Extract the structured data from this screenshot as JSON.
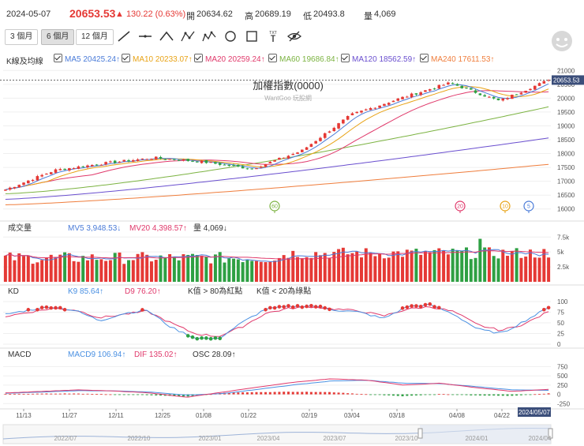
{
  "header": {
    "date": "2024-05-07",
    "price": "20653.53",
    "change": "▲ 130.22 (0.63%)",
    "open_label": "開",
    "open": "20634.62",
    "high_label": "高",
    "high": "20689.19",
    "low_label": "低",
    "low": "20493.8",
    "volume_label": "量",
    "volume": "4,069"
  },
  "periods": [
    "3 個月",
    "6 個月",
    "12 個月"
  ],
  "selected_period": 1,
  "tools": [
    "trend-line-icon",
    "horizontal-line-icon",
    "polyline-icon",
    "triangle-tool-icon",
    "wave-tool-icon",
    "circle-tool-icon",
    "rectangle-tool-icon",
    "text-tool-icon",
    "hide-drawings-icon"
  ],
  "text_tool_label": "TXT",
  "colors": {
    "up": "#e53935",
    "down": "#2ea043",
    "ma5": "#4a7bd8",
    "ma10": "#e8a317",
    "ma20": "#e0396b",
    "ma60": "#7cb342",
    "ma120": "#6a4fcf",
    "ma240": "#ef7d3c",
    "k": "#4a90e2",
    "d": "#e0396b"
  },
  "main_legend": {
    "title": "K線及均線",
    "items": [
      {
        "label": "MA5 20425.24↑",
        "color": "#4a7bd8"
      },
      {
        "label": "MA10 20233.07↑",
        "color": "#e8a317"
      },
      {
        "label": "MA20 20259.24↑",
        "color": "#e0396b"
      },
      {
        "label": "MA60 19686.84↑",
        "color": "#7cb342"
      },
      {
        "label": "MA120 18562.59↑",
        "color": "#6a4fcf"
      },
      {
        "label": "MA240 17611.53↑",
        "color": "#ef7d3c"
      }
    ]
  },
  "chart_title": "加權指數(0000)",
  "watermark": "WantGoo 玩股網",
  "last_price_tag": "20653.53",
  "volume_legend": {
    "title": "成交量",
    "mv5": "MV5 3,948.53↓",
    "mv20": "MV20 4,398.57↑",
    "vol": "量 4,069↓"
  },
  "kd_legend": {
    "title": "KD",
    "k9": "K9 85.64↑",
    "d9": "D9 76.20↑",
    "note_high": "K值 > 80為紅點",
    "note_low": "K值 < 20為綠點"
  },
  "macd_legend": {
    "title": "MACD",
    "macd9": "MACD9 106.94↑",
    "dif": "DIF 135.02↑",
    "osc": "OSC 28.09↑"
  },
  "date_labels": [
    "11/13",
    "11/27",
    "12/11",
    "12/25",
    "01/08",
    "01/22",
    "02/19",
    "03/04",
    "03/18",
    "04/08",
    "04/22"
  ],
  "date_tag": "2024/05/07",
  "navigator_labels": [
    "2022/07",
    "2022/10",
    "2023/01",
    "2023/04",
    "2023/07",
    "2023/10",
    "2024/01",
    "2024/04"
  ],
  "markers": [
    {
      "label": "60",
      "color": "#7cb342"
    },
    {
      "label": "20",
      "color": "#e0396b"
    },
    {
      "label": "10",
      "color": "#e8a317"
    },
    {
      "label": "5",
      "color": "#4a7bd8"
    }
  ],
  "chart_data": [
    {
      "type": "candlestick",
      "title": "加權指數(0000)",
      "y_ticks": [
        16000,
        16500,
        17000,
        17500,
        18000,
        18500,
        19000,
        19500,
        20000,
        20500,
        21000
      ],
      "ylim": [
        15850,
        21150
      ],
      "x": [
        "11/13",
        "11/27",
        "12/11",
        "12/25",
        "01/08",
        "01/22",
        "02/19",
        "03/04",
        "03/18",
        "04/08",
        "04/22",
        "05/07"
      ],
      "close_series": [
        16700,
        17400,
        17650,
        17850,
        17700,
        17450,
        18100,
        19400,
        20000,
        20550,
        19900,
        20653.53
      ],
      "ma_latest": {
        "MA5": 20425.24,
        "MA10": 20233.07,
        "MA20": 20259.24,
        "MA60": 19686.84,
        "MA120": 18562.59,
        "MA240": 17611.53
      },
      "last": 20653.53,
      "open": 20634.62,
      "high": 20689.19,
      "low": 20493.8
    },
    {
      "type": "bar",
      "title": "成交量",
      "y_ticks": [
        "2.5k",
        "5k",
        "7.5k"
      ],
      "ylim": [
        0,
        7800
      ],
      "mv5": 3948.53,
      "mv20": 4398.57,
      "last": 4069
    },
    {
      "type": "line",
      "title": "KD",
      "y_ticks": [
        0,
        25,
        50,
        75,
        100
      ],
      "ylim": [
        0,
        100
      ],
      "k9": 85.64,
      "d9": 76.2,
      "k_series": [
        70,
        80,
        88,
        78,
        55,
        72,
        80,
        40,
        15,
        12,
        50,
        82,
        88,
        90,
        80,
        75,
        60,
        88,
        92,
        70,
        35,
        25,
        55,
        85.64
      ],
      "d_series": [
        65,
        75,
        84,
        80,
        62,
        70,
        77,
        50,
        25,
        18,
        40,
        72,
        84,
        88,
        82,
        78,
        66,
        82,
        88,
        76,
        45,
        32,
        48,
        76.2
      ]
    },
    {
      "type": "bar",
      "title": "MACD",
      "y_ticks": [
        -250,
        0,
        250,
        500,
        750
      ],
      "ylim": [
        -350,
        800
      ],
      "macd9": 106.94,
      "dif": 135.02,
      "osc": 28.09
    }
  ]
}
